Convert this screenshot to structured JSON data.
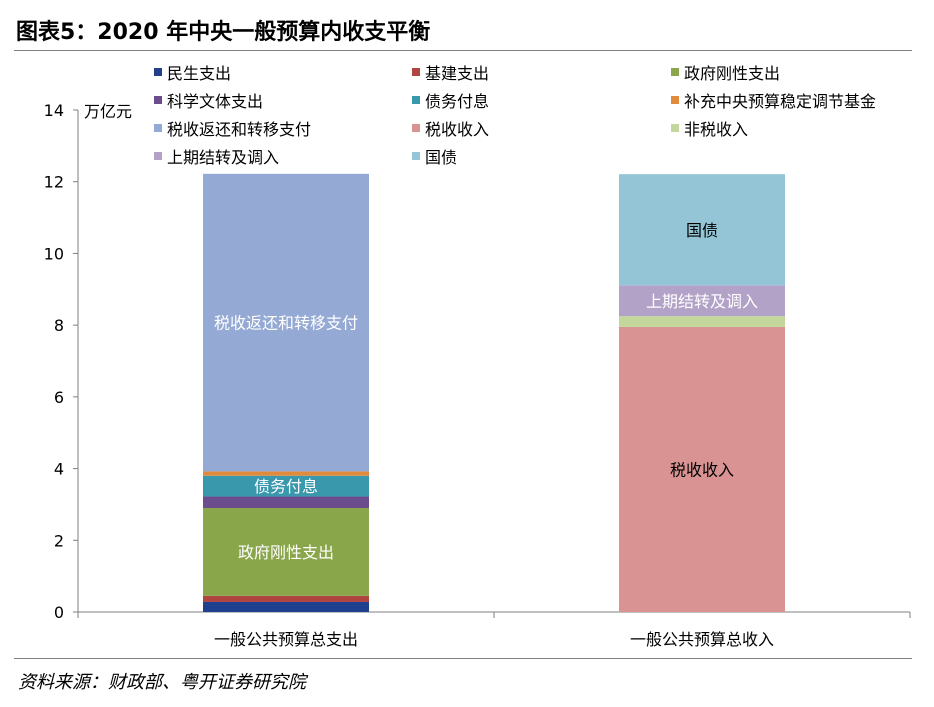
{
  "title": "图表5：2020 年中央一般预算内收支平衡",
  "source": "资料来源：财政部、粤开证券研究院",
  "chart_data": {
    "type": "bar",
    "stacked": true,
    "unit_label": "万亿元",
    "ylim": [
      0,
      14
    ],
    "yticks": [
      0,
      2,
      4,
      6,
      8,
      10,
      12,
      14
    ],
    "categories": [
      "一般公共预算总支出",
      "一般公共预算总收入"
    ],
    "series": [
      {
        "name": "民生支出",
        "color": "#1f3f8f",
        "values": [
          0.28,
          0
        ]
      },
      {
        "name": "基建支出",
        "color": "#b04440",
        "values": [
          0.17,
          0
        ]
      },
      {
        "name": "政府刚性支出",
        "color": "#8aa64a",
        "values": [
          2.45,
          0
        ],
        "bar_label": "政府刚性支出"
      },
      {
        "name": "科学文体支出",
        "color": "#6b4c8c",
        "values": [
          0.32,
          0
        ]
      },
      {
        "name": "债务付息",
        "color": "#3a98ad",
        "values": [
          0.58,
          0
        ],
        "bar_label": "债务付息"
      },
      {
        "name": "补充中央预算稳定调节基金",
        "color": "#e08a3c",
        "values": [
          0.12,
          0
        ]
      },
      {
        "name": "税收返还和转移支付",
        "color": "#94a9d3",
        "values": [
          8.3,
          0
        ],
        "bar_label": "税收返还和转移支付"
      },
      {
        "name": "税收收入",
        "color": "#d99392",
        "values": [
          0,
          7.95
        ],
        "bar_label": "税收收入"
      },
      {
        "name": "非税收入",
        "color": "#c3d69b",
        "values": [
          0,
          0.3
        ]
      },
      {
        "name": "上期结转及调入",
        "color": "#b3a2c8",
        "values": [
          0,
          0.86
        ],
        "bar_label": "上期结转及调入"
      },
      {
        "name": "国债",
        "color": "#93c5d6",
        "values": [
          0,
          3.1
        ],
        "bar_label": "国债"
      }
    ],
    "legend_position": "top"
  }
}
